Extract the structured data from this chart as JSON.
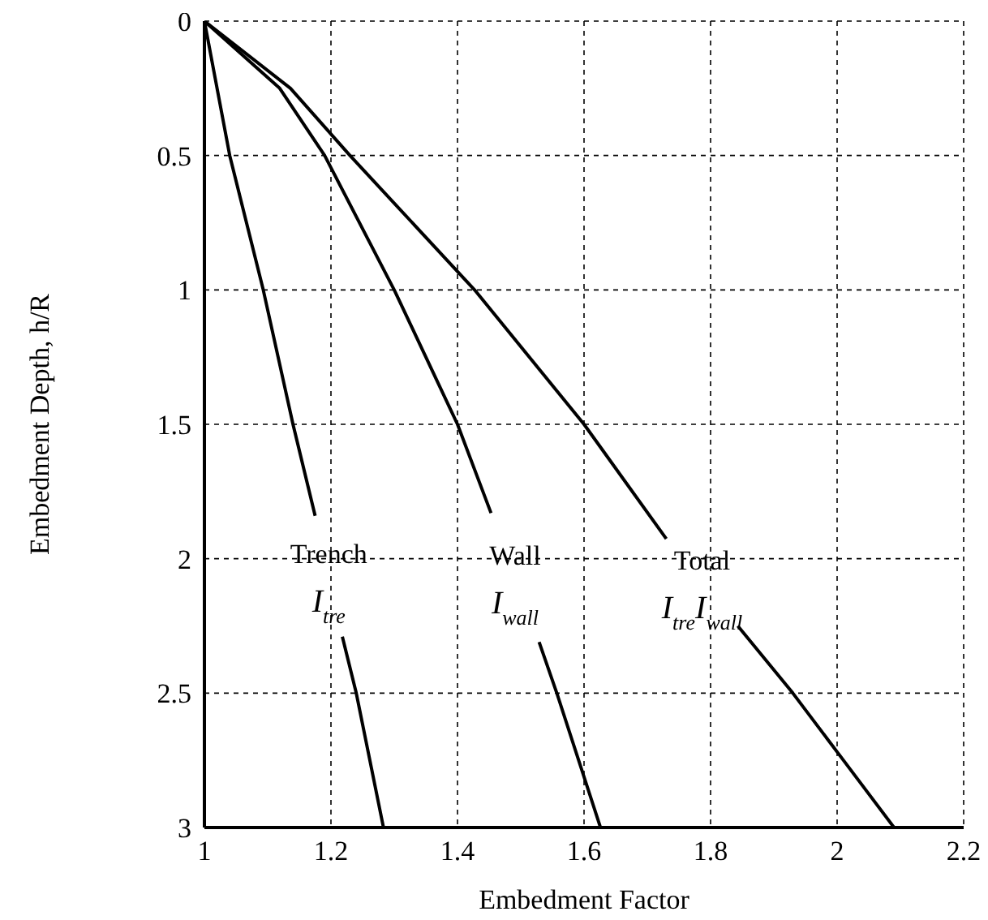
{
  "chart_data": {
    "type": "line",
    "xlabel": "Embedment Factor",
    "ylabel": "Embedment Depth, h/R",
    "xlim": [
      1,
      2.2
    ],
    "xticks": [
      1,
      1.2,
      1.4,
      1.6,
      1.8,
      2,
      2.2
    ],
    "ylim": [
      3,
      0
    ],
    "yticks": [
      0,
      0.5,
      1,
      1.5,
      2,
      2.5,
      3
    ],
    "grid": true,
    "line_style": "solid",
    "marker": "none",
    "series": [
      {
        "name": "Trench",
        "color": "#000000",
        "x": [
          1,
          1.04,
          1.093,
          1.14,
          1.175,
          1.2,
          1.218,
          1.24,
          1.283
        ],
        "values": [
          0,
          0.5,
          1,
          1.5,
          1.84,
          null,
          2.29,
          2.5,
          3
        ]
      },
      {
        "name": "Wall",
        "color": "#000000",
        "x": [
          1,
          1.119,
          1.19,
          1.3,
          1.4,
          1.453,
          1.49,
          1.529,
          1.557,
          1.626
        ],
        "values": [
          0,
          0.25,
          0.5,
          1,
          1.5,
          1.83,
          null,
          2.31,
          2.5,
          3
        ]
      },
      {
        "name": "Total",
        "color": "#000000",
        "x": [
          1,
          1.136,
          1.23,
          1.427,
          1.6,
          1.73,
          1.78,
          1.843,
          1.93,
          2.01,
          2.09
        ],
        "values": [
          0,
          0.25,
          0.5,
          1,
          1.5,
          1.926,
          null,
          2.25,
          2.5,
          2.75,
          3
        ]
      }
    ],
    "annotations": [
      "I$_{tre}$",
      "I$_{wall}$",
      "I$_{tre}$I$_{wall}$"
    ]
  }
}
